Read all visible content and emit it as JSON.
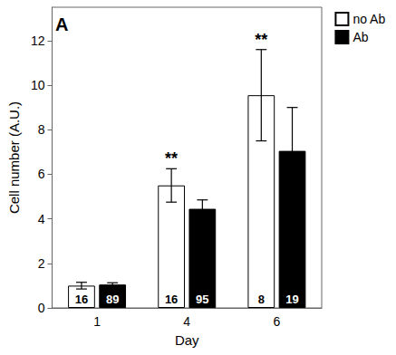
{
  "chart_data": {
    "type": "bar",
    "title": "A",
    "categories": [
      "1",
      "4",
      "6"
    ],
    "x_label": "Day",
    "y_label": "Cell number (A.U.)",
    "series": [
      {
        "name": "no Ab",
        "color": "#ffffff",
        "values": [
          1.0,
          5.5,
          9.55
        ],
        "errors": [
          0.15,
          0.75,
          2.05
        ],
        "n": [
          16,
          16,
          8
        ]
      },
      {
        "name": "Ab",
        "color": "#000000",
        "values": [
          1.05,
          4.45,
          7.05
        ],
        "errors": [
          0.08,
          0.4,
          1.95
        ],
        "n": [
          89,
          95,
          19
        ]
      }
    ],
    "annotations": [
      {
        "text": "**",
        "category": "4",
        "series": "no Ab"
      },
      {
        "text": "**",
        "category": "6",
        "series": "no Ab"
      }
    ],
    "ylim": [
      0,
      13.5
    ],
    "yticks": [
      0,
      2,
      4,
      6,
      8,
      10,
      12
    ],
    "grid": false,
    "legend": "upper right"
  }
}
